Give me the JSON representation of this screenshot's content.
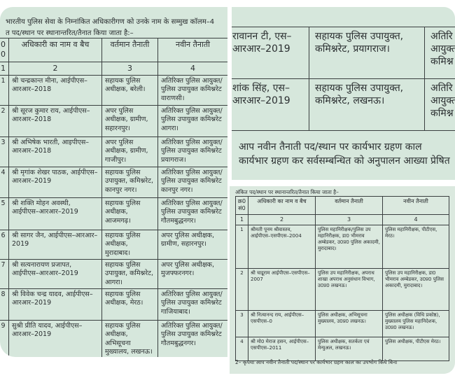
{
  "left": {
    "intro": [
      "भारतीय पुलिस सेवा के निम्नांकित अधिकारीगण को उनके नाम के सम्मुख कॉलम–4",
      "त पद/स्थान पर स्थानान्तरित/तैनात किया जाता है:–"
    ],
    "headers": [
      "0 0",
      "अधिकारी का नाम व बैच",
      "वर्तमान तैनाती",
      "नवीन तैनाती"
    ],
    "col_numbers": [
      "1",
      "2",
      "3",
      "4"
    ],
    "rows": [
      {
        "n": "1",
        "name": "श्री चन्द्रकान्त मीना, आईपीएस–आरआर–2018",
        "current": "सहायक पुलिस अधीक्षक, बरेली।",
        "new": "अतिरिक्त पुलिस आयुक्त/पुलिस उपायुक्त कमिश्नरेट वाराणसी।"
      },
      {
        "n": "2",
        "name": "श्री सूरज कुमार राय, आईपीएस–आरआर–2018",
        "current": "अपर पुलिस अधीक्षक, ग्रामीण, सहारनपुर।",
        "new": "अतिरिक्त पुलिस आयुक्त/पुलिस उपायुक्त कमिश्नरेट आगरा।"
      },
      {
        "n": "3",
        "name": "श्री अभिषेक भारती, आइपीएस–आरआर–2018",
        "current": "अपर पुलिस अधीक्षक, ग्रामीण, गाजीपुर।",
        "new": "अतिरिक्त पुलिस आयुक्त/पुलिस उपायुक्त कमिश्नरेट प्रयागराज।"
      },
      {
        "n": "4",
        "name": "श्री मृगांक शेखर पाठक, आईपीएस–आरआर–2019",
        "current": "सहायक पुलिस उपायुक्त, कमिश्नरेट, कानपुर नगर।",
        "new": "अतिरिक्त पुलिस आयुक्त/पुलिस उपायुक्त कमिश्नरेट कानपुर नगर।"
      },
      {
        "n": "5",
        "name": "श्री शक्ति मोहन अवस्थी, आईपीएस–आरआर–2019",
        "current": "सहायक पुलिस अधीक्षक, आजमगढ़।",
        "new": "अतिरिक्त पुलिस आयुक्त/पुलिस उपायुक्त कमिश्नरेट गौतमबुद्धनगर।"
      },
      {
        "n": "6",
        "name": "श्री सागर जैन, आईपीएस–आरआर–2019",
        "current": "सहायक पुलिस अधीक्षक, मुरादाबाद।",
        "new": "अपर पुलिस अधीक्षक, ग्रामीण, सहारनपुर।"
      },
      {
        "n": "7",
        "name": "श्री सत्यनारायण प्रजापत, आईपीएस–आरआर–2019",
        "current": "सहायक पुलिस उपायुक्त, कमिश्नरेट, आगरा।",
        "new": "अपर पुलिस अधीक्षक, मुजफ्फरनगर।"
      },
      {
        "n": "8",
        "name": "श्री विवेक चन्द्र यादव, आईपीएस–आरआर–2019",
        "current": "सहायक पुलिस अधीक्षक, मेरठ।",
        "new": "अतिरिक्त पुलिस आयुक्त/पुलिस उपायुक्त कमिश्नरेट गाजियाबाद।"
      },
      {
        "n": "9",
        "name": "सुश्री प्रीति यादव, आईपीएस–आरआर–2019",
        "current": "सहायक पुलिस अधीक्षक, अभिसूचना मुख्यालय, लखनऊ।",
        "new": "अतिरिक्त पुलिस आयुक्त/पुलिस उपायुक्त कमिश्नरेट गौतमबुद्धनगर।"
      }
    ]
  },
  "top_right": {
    "rows": [
      {
        "name": "रावानन टी, एस–आरआर–2019",
        "current": "सहायक पुलिस उपायुक्त, कमिश्नरेट, प्रयागराज।",
        "new": "अतिरि आयुक्त कमिश्न"
      },
      {
        "name": "शांक सिंह, एस–आरआर–2019",
        "current": "सहायक पुलिस उपायुक्त, कमिश्नरेट, लखनऊ।",
        "new": "अतिरि आयुक्त कमिश्न"
      }
    ],
    "para": [
      "आप नवीन तैनाती पद/स्थान पर कार्यभार ग्रहण काल",
      "कार्यभार ग्रहण कर सर्वसम्बन्धित को अनुपालन आख्या प्रेषित"
    ]
  },
  "bottom_right": {
    "intro": "अंकित पद/स्थान पर स्थानान्तरित/तैनात किया जाता है–",
    "headers": [
      "क्र0 सं0",
      "अधिकारी का नाम व बैच",
      "वर्तमान तैनाती",
      "नवीन तैनाती"
    ],
    "col_numbers": [
      "1",
      "2",
      "3",
      "4"
    ],
    "rows": [
      {
        "n": "1",
        "name": "श्रीमती पूनम श्रीवास्तव, आईपीएस–एसपीएस–2004",
        "current": "पुलिस महानिरीक्षक/पुलिस उप महानिरीक्षक, डा0 भीमराव अम्बेडकर, उ0प्र0 पुलिस अकादमी, मुरादाबाद।",
        "new": "पुलिस महानिरीक्षक, पीटीएस, मेरठ।"
      },
      {
        "n": "2",
        "name": "श्री चाइूराम आईपीएस–एसपीएस–2007",
        "current": "पुलिस उप महानिरीक्षक, अपराध शाखा अपराध अनुसंधान विभाग, उ0प्र0 लखनऊ।",
        "new": "पुलिस उप महानिरीक्षक, डा0 भीमराव अम्बेडकर, उ0प्र0 पुलिस अकादमी, मुरादाबाद।"
      },
      {
        "n": "3",
        "name": "श्री नित्यानन्द राय, आईपीएस–एसपीएस–0",
        "current": "पुलिस अधीक्षक, अभिसूचना मुख्यालय, उ0प्र0 लखनऊ।",
        "new": "पुलिस अधीक्षक (विधि प्रकोष्ठ), मुख्यालय पुलिस महानिदेशक, उ0प्र0 लखनऊ।"
      },
      {
        "n": "4",
        "name": "श्री मो0 मेराज हसन, आईपीएस–एसपीएस–2011",
        "current": "पुलिस अधीक्षक, सतर्कता एवं मेन्युअल, लखनऊ।",
        "new": "पुलिस अधीक्षक, पीटीएस मेरठ।"
      }
    ],
    "para": "2–   कृपया आप नवीन तैनाती पद/स्थान पर कार्यभार ग्रहण काल का उपभोग किये बिना"
  }
}
